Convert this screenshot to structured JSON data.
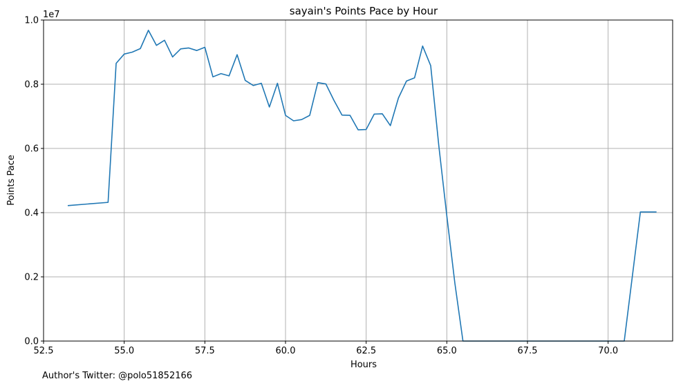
{
  "chart_data": {
    "type": "line",
    "title": "sayain's Points Pace by Hour",
    "xlabel": "Hours",
    "ylabel": "Points Pace",
    "y_offset_label": "1e7",
    "xlim": [
      52.5,
      72.0
    ],
    "ylim": [
      0.0,
      1.0
    ],
    "xticks": [
      52.5,
      55.0,
      57.5,
      60.0,
      62.5,
      65.0,
      67.5,
      70.0
    ],
    "xtick_labels": [
      "52.5",
      "55.0",
      "57.5",
      "60.0",
      "62.5",
      "65.0",
      "67.5",
      "70.0"
    ],
    "yticks": [
      0.0,
      0.2,
      0.4,
      0.6,
      0.8,
      1.0
    ],
    "ytick_labels": [
      "0.0",
      "0.2",
      "0.4",
      "0.6",
      "0.8",
      "1.0"
    ],
    "grid": true,
    "series": [
      {
        "color": "#1f77b4",
        "x": [
          53.25,
          54.5,
          54.75,
          55.0,
          55.25,
          55.5,
          55.75,
          56.0,
          56.25,
          56.5,
          56.75,
          57.0,
          57.25,
          57.5,
          57.75,
          58.0,
          58.25,
          58.5,
          58.75,
          59.0,
          59.25,
          59.5,
          59.75,
          60.0,
          60.25,
          60.5,
          60.75,
          61.0,
          61.25,
          61.5,
          61.75,
          62.0,
          62.25,
          62.5,
          62.75,
          63.0,
          63.25,
          63.5,
          63.75,
          64.0,
          64.25,
          64.5,
          64.75,
          65.0,
          65.25,
          65.5,
          70.5,
          71.0,
          71.5
        ],
        "y": [
          0.422,
          0.432,
          0.865,
          0.894,
          0.9,
          0.911,
          0.968,
          0.921,
          0.937,
          0.885,
          0.91,
          0.913,
          0.905,
          0.915,
          0.823,
          0.833,
          0.826,
          0.892,
          0.812,
          0.796,
          0.803,
          0.729,
          0.803,
          0.703,
          0.686,
          0.69,
          0.703,
          0.805,
          0.801,
          0.75,
          0.704,
          0.703,
          0.658,
          0.659,
          0.707,
          0.708,
          0.671,
          0.757,
          0.81,
          0.82,
          0.919,
          0.858,
          0.61,
          0.39,
          0.18,
          0.0,
          0.0,
          0.402,
          0.402
        ]
      }
    ]
  },
  "footnote": "Author's Twitter: @polo51852166"
}
